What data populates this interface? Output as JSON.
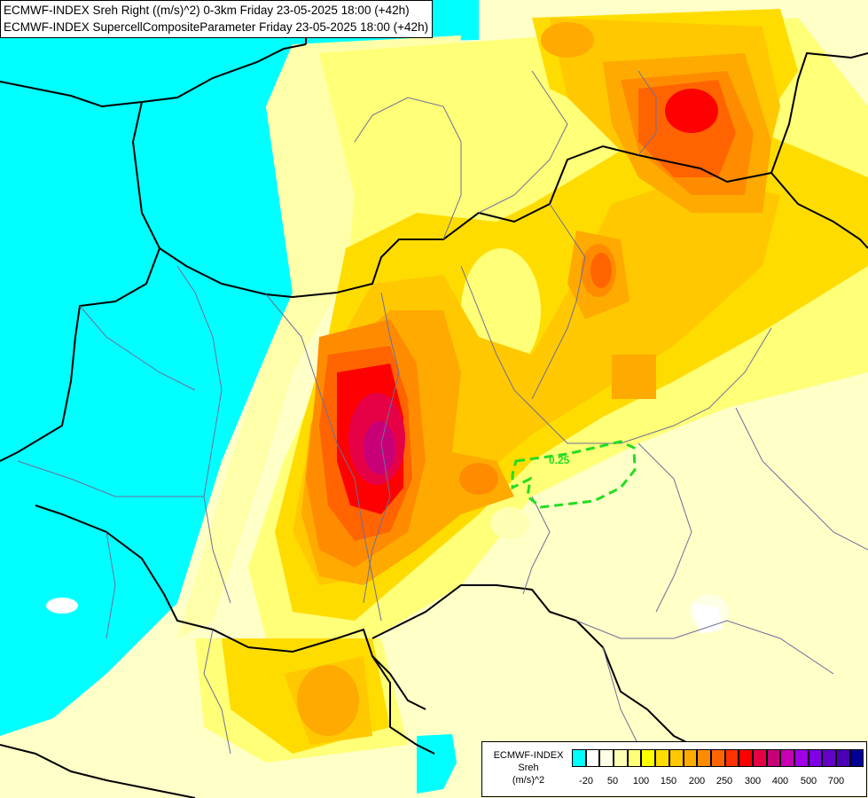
{
  "header": {
    "line1": "ECMWF-INDEX Sreh Right ((m/s)^2) 0-3km Friday 23-05-2025 18:00 (+42h)",
    "line2": "ECMWF-INDEX SupercellCompositeParameter Friday 23-05-2025 18:00 (+42h)"
  },
  "contour_label": "0.25",
  "legend": {
    "title_line1": "ECMWF-INDEX",
    "title_line2": "Sreh",
    "title_line3": "(m/s)^2",
    "colors": [
      "#00ffff",
      "#ffffff",
      "#ffffe6",
      "#ffffb4",
      "#ffff78",
      "#ffff00",
      "#ffdc00",
      "#ffc800",
      "#ffaa00",
      "#ff8c00",
      "#ff6400",
      "#ff3200",
      "#ff0000",
      "#e60046",
      "#c80078",
      "#c800b4",
      "#a000e6",
      "#8200e6",
      "#6400c8",
      "#4b00b4",
      "#000096"
    ],
    "ticks": [
      "-20",
      "50",
      "100",
      "150",
      "200",
      "250",
      "300",
      "400",
      "500",
      "700"
    ]
  }
}
